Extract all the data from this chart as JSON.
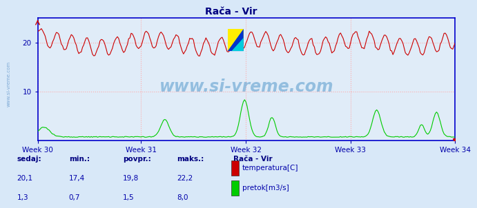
{
  "title": "Rača - Vir",
  "title_color": "#000080",
  "bg_color": "#d8e8f8",
  "plot_bg_color": "#e0ecf8",
  "grid_color": "#ffaaaa",
  "ylabel_color": "#0000aa",
  "xlabel_color": "#0000aa",
  "watermark_text": "www.si-vreme.com",
  "watermark_color": "#5599cc",
  "left_label": "www.si-vreme.com",
  "left_label_color": "#6699cc",
  "ylim": [
    0,
    25
  ],
  "yticks": [
    10,
    20
  ],
  "weeks": [
    "Week 30",
    "Week 31",
    "Week 32",
    "Week 33",
    "Week 34"
  ],
  "n_points": 336,
  "temp_color": "#cc0000",
  "flow_color": "#00cc00",
  "axis_line_color": "#0000cc",
  "legend_station": "Rača - Vir",
  "legend_items": [
    {
      "label": "temperatura[C]",
      "color": "#cc0000"
    },
    {
      "label": "pretok[m3/s]",
      "color": "#00cc00"
    }
  ],
  "stats_headers": [
    "sedaj:",
    "min.:",
    "povpr.:",
    "maks.:"
  ],
  "stats_temp": [
    "20,1",
    "17,4",
    "19,8",
    "22,2"
  ],
  "stats_flow": [
    "1,3",
    "0,7",
    "1,5",
    "8,0"
  ]
}
